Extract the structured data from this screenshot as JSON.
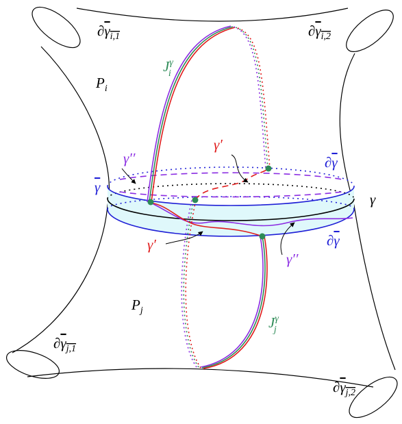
{
  "labels": {
    "boundary_i1": {
      "prefix": "∂",
      "symbol": "γ",
      "sub": "i,1"
    },
    "boundary_i2": {
      "prefix": "∂",
      "symbol": "γ",
      "sub": "i,2"
    },
    "pants_i": {
      "symbol": "P",
      "sub": "i"
    },
    "arc_i": {
      "symbol": "J",
      "sub": "i",
      "sup": "γ"
    },
    "gamma_double_prime_top": {
      "symbol": "γ′′"
    },
    "gamma_prime_top": {
      "symbol": "γ′"
    },
    "boundary_collar_top": {
      "prefix": "∂",
      "symbol": "γ"
    },
    "collar": {
      "symbol": "γ"
    },
    "gamma": {
      "symbol": "γ"
    },
    "gamma_prime_bottom": {
      "symbol": "γ′"
    },
    "gamma_double_prime_bottom": {
      "symbol": "γ′′"
    },
    "boundary_collar_bottom": {
      "prefix": "∂",
      "symbol": "γ"
    },
    "pants_j": {
      "symbol": "P",
      "sub": "j"
    },
    "arc_j": {
      "symbol": "J",
      "sub": "j",
      "sup": "γ"
    },
    "boundary_j1": {
      "prefix": "∂",
      "symbol": "γ",
      "sub": "j,1"
    },
    "boundary_j2": {
      "prefix": "∂",
      "symbol": "γ",
      "sub": "j,2"
    }
  }
}
